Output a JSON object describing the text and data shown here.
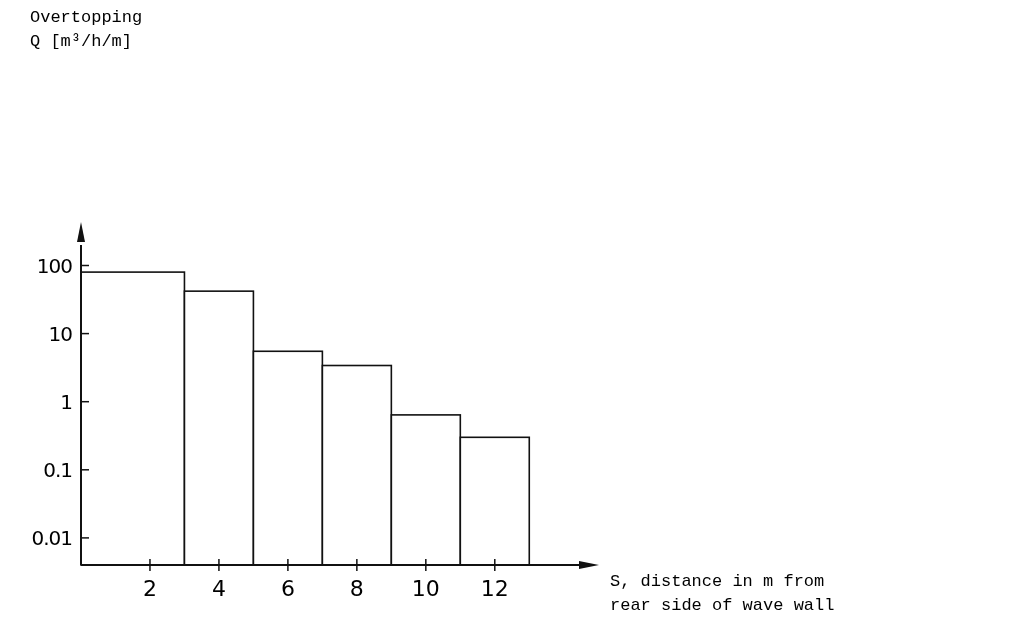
{
  "chart_data": {
    "type": "histogram",
    "annotations": [
      "Overtopping\nQ  [m³/h/m]"
    ],
    "xlabel": "S, distance in m from\nrear side of wave wall",
    "bins": [
      0,
      3,
      5,
      7,
      9,
      11,
      13
    ],
    "values": [
      80,
      42,
      5.5,
      3.4,
      0.64,
      0.3
    ],
    "color": "#ffffff",
    "xlim": [
      0,
      14.5
    ],
    "xticks": [
      2,
      4,
      6,
      8,
      10,
      12
    ],
    "ylim": [
      0.004,
      200
    ],
    "yticks": [
      100,
      10,
      1,
      0.1,
      0.01
    ],
    "log": true,
    "grid": false
  }
}
